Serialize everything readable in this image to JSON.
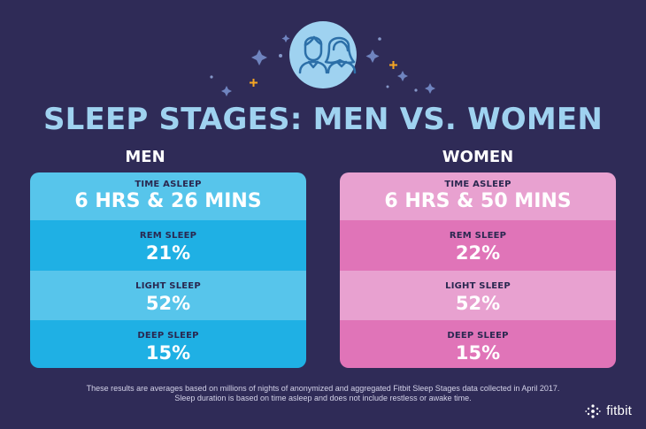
{
  "colors": {
    "background": "#2f2b57",
    "title": "#9fd2f0",
    "men_light": "#57c5eb",
    "men_dark": "#1fb0e4",
    "women_light": "#e8a1d0",
    "women_dark": "#e074b8",
    "label_text": "#2a2850",
    "value_text": "#ffffff",
    "footnote_text": "#d3d2e8",
    "sparkle_blue": "#6f84bf",
    "sparkle_orange": "#f5a623",
    "icon_circle": "#9fd2f0",
    "icon_stroke": "#2c6fa8"
  },
  "header": {
    "title": "SLEEP STAGES: MEN VS. WOMEN",
    "icon": "man-and-woman-icon"
  },
  "men": {
    "label": "MEN",
    "stats": [
      {
        "label": "TIME ASLEEP",
        "value": "6 HRS & 26 MINS"
      },
      {
        "label": "REM SLEEP",
        "value": "21%"
      },
      {
        "label": "LIGHT SLEEP",
        "value": "52%"
      },
      {
        "label": "DEEP SLEEP",
        "value": "15%"
      }
    ]
  },
  "women": {
    "label": "WOMEN",
    "stats": [
      {
        "label": "TIME ASLEEP",
        "value": "6 HRS & 50 MINS"
      },
      {
        "label": "REM SLEEP",
        "value": "22%"
      },
      {
        "label": "LIGHT SLEEP",
        "value": "52%"
      },
      {
        "label": "DEEP SLEEP",
        "value": "15%"
      }
    ]
  },
  "footnote": {
    "line1": "These results are averages based on millions of nights of anonymized and aggregated Fitbit Sleep Stages data collected in April 2017.",
    "line2": "Sleep duration is based on time asleep and does not include restless or awake time."
  },
  "brand": {
    "name": "fitbit",
    "icon": "fitbit-logo-icon"
  }
}
